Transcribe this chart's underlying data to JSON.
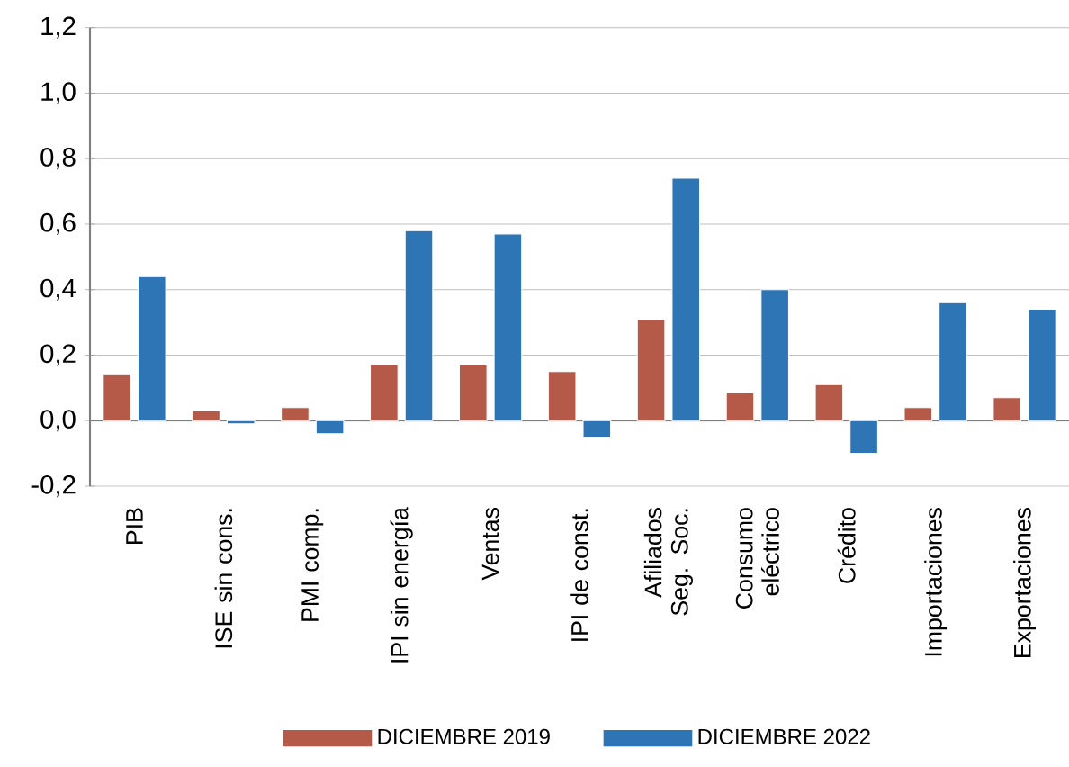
{
  "chart_data": {
    "type": "bar",
    "categories": [
      "PIB",
      "ISE sin cons.",
      "PMI comp.",
      "IPI sin energía",
      "Ventas",
      "IPI de const.",
      "Afiliados Seg. Soc.",
      "Consumo eléctrico",
      "Crédito",
      "Importaciones",
      "Exportaciones"
    ],
    "series": [
      {
        "name": "DICIEMBRE 2019",
        "color": "#b55a48",
        "values": [
          0.14,
          0.03,
          0.04,
          0.17,
          0.17,
          0.15,
          0.31,
          0.085,
          0.11,
          0.04,
          0.07
        ]
      },
      {
        "name": "DICIEMBRE 2022",
        "color": "#2e75b6",
        "values": [
          0.44,
          -0.01,
          -0.04,
          0.58,
          0.57,
          -0.05,
          0.74,
          0.4,
          -0.1,
          0.36,
          0.34
        ]
      }
    ],
    "ylim": [
      -0.2,
      1.2
    ],
    "yticks": [
      {
        "value": -0.2,
        "label": "-0,2"
      },
      {
        "value": 0.0,
        "label": "0,0"
      },
      {
        "value": 0.2,
        "label": "0,2"
      },
      {
        "value": 0.4,
        "label": "0,4"
      },
      {
        "value": 0.6,
        "label": "0,6"
      },
      {
        "value": 0.8,
        "label": "0,8"
      },
      {
        "value": 1.0,
        "label": "1,0"
      },
      {
        "value": 1.2,
        "label": "1,2"
      }
    ],
    "grid": "y",
    "legend": "bottom"
  }
}
